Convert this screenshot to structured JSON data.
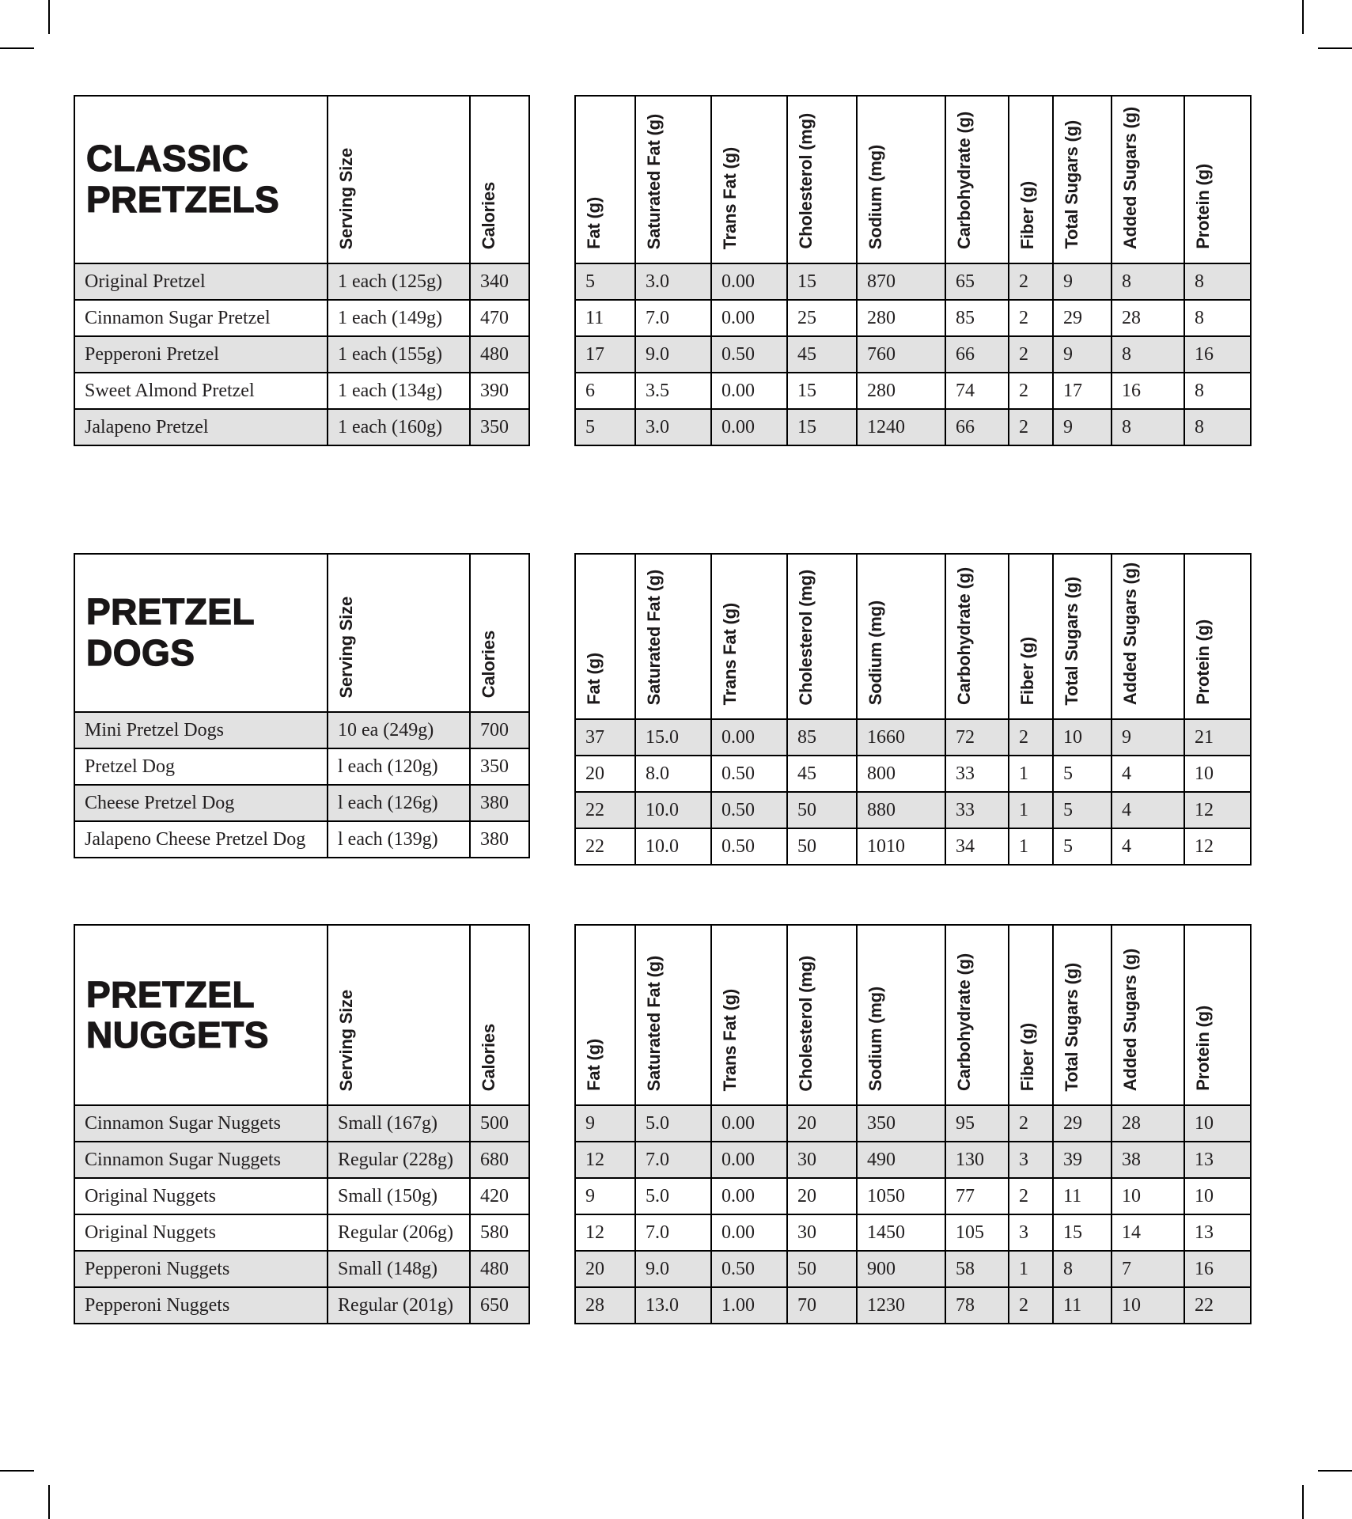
{
  "labels": {
    "serving": "Serving Size",
    "calories": "Calories",
    "nutrition": [
      "Fat (g)",
      "Saturated Fat (g)",
      "Trans Fat (g)",
      "Cholesterol (mg)",
      "Sodium (mg)",
      "Carbohydrate (g)",
      "Fiber (g)",
      "Total Sugars (g)",
      "Added Sugars (g)",
      "Protein (g)"
    ]
  },
  "colors": {
    "row_shade": "#e2e2e2",
    "border": "#000000",
    "text": "#232021"
  },
  "sections": [
    {
      "title": "CLASSIC PRETZELS",
      "title_lines": [
        "CLASSIC",
        "PRETZELS"
      ],
      "rows": [
        {
          "name": "Original Pretzel",
          "serving": "1 each (125g)",
          "calories": "340",
          "shaded": true,
          "nutrition": [
            "5",
            "3.0",
            "0.00",
            "15",
            "870",
            "65",
            "2",
            "9",
            "8",
            "8"
          ]
        },
        {
          "name": "Cinnamon Sugar Pretzel",
          "serving": "1 each (149g)",
          "calories": "470",
          "shaded": false,
          "nutrition": [
            "11",
            "7.0",
            "0.00",
            "25",
            "280",
            "85",
            "2",
            "29",
            "28",
            "8"
          ]
        },
        {
          "name": "Pepperoni Pretzel",
          "serving": "1 each (155g)",
          "calories": "480",
          "shaded": true,
          "nutrition": [
            "17",
            "9.0",
            "0.50",
            "45",
            "760",
            "66",
            "2",
            "9",
            "8",
            "16"
          ]
        },
        {
          "name": "Sweet Almond Pretzel",
          "serving": "1 each (134g)",
          "calories": "390",
          "shaded": false,
          "nutrition": [
            "6",
            "3.5",
            "0.00",
            "15",
            "280",
            "74",
            "2",
            "17",
            "16",
            "8"
          ]
        },
        {
          "name": "Jalapeno Pretzel",
          "serving": "1 each (160g)",
          "calories": "350",
          "shaded": true,
          "nutrition": [
            "5",
            "3.0",
            "0.00",
            "15",
            "1240",
            "66",
            "2",
            "9",
            "8",
            "8"
          ]
        }
      ]
    },
    {
      "title": "PRETZEL DOGS",
      "title_lines": [
        "PRETZEL",
        "DOGS"
      ],
      "rows": [
        {
          "name": "Mini Pretzel Dogs",
          "serving": "10 ea (249g)",
          "calories": "700",
          "shaded": true,
          "nutrition": [
            "37",
            "15.0",
            "0.00",
            "85",
            "1660",
            "72",
            "2",
            "10",
            "9",
            "21"
          ]
        },
        {
          "name": "Pretzel Dog",
          "serving": "l each (120g)",
          "calories": "350",
          "shaded": false,
          "nutrition": [
            "20",
            "8.0",
            "0.50",
            "45",
            "800",
            "33",
            "1",
            "5",
            "4",
            "10"
          ]
        },
        {
          "name": "Cheese Pretzel Dog",
          "serving": "l each (126g)",
          "calories": "380",
          "shaded": true,
          "nutrition": [
            "22",
            "10.0",
            "0.50",
            "50",
            "880",
            "33",
            "1",
            "5",
            "4",
            "12"
          ]
        },
        {
          "name": "Jalapeno Cheese Pretzel Dog",
          "serving": "l each (139g)",
          "calories": "380",
          "shaded": false,
          "nutrition": [
            "22",
            "10.0",
            "0.50",
            "50",
            "1010",
            "34",
            "1",
            "5",
            "4",
            "12"
          ]
        }
      ]
    },
    {
      "title": "PRETZEL NUGGETS",
      "title_lines": [
        "PRETZEL",
        "NUGGETS"
      ],
      "rows": [
        {
          "name": "Cinnamon Sugar Nuggets",
          "serving": "Small (167g)",
          "calories": "500",
          "shaded": true,
          "nutrition": [
            "9",
            "5.0",
            "0.00",
            "20",
            "350",
            "95",
            "2",
            "29",
            "28",
            "10"
          ]
        },
        {
          "name": "Cinnamon Sugar Nuggets",
          "serving": "Regular (228g)",
          "calories": "680",
          "shaded": true,
          "nutrition": [
            "12",
            "7.0",
            "0.00",
            "30",
            "490",
            "130",
            "3",
            "39",
            "38",
            "13"
          ]
        },
        {
          "name": "Original Nuggets",
          "serving": "Small (150g)",
          "calories": "420",
          "shaded": false,
          "nutrition": [
            "9",
            "5.0",
            "0.00",
            "20",
            "1050",
            "77",
            "2",
            "11",
            "10",
            "10"
          ]
        },
        {
          "name": "Original Nuggets",
          "serving": "Regular (206g)",
          "calories": "580",
          "shaded": false,
          "nutrition": [
            "12",
            "7.0",
            "0.00",
            "30",
            "1450",
            "105",
            "3",
            "15",
            "14",
            "13"
          ]
        },
        {
          "name": "Pepperoni Nuggets",
          "serving": "Small (148g)",
          "calories": "480",
          "shaded": true,
          "nutrition": [
            "20",
            "9.0",
            "0.50",
            "50",
            "900",
            "58",
            "1",
            "8",
            "7",
            "16"
          ]
        },
        {
          "name": "Pepperoni Nuggets",
          "serving": "Regular (201g)",
          "calories": "650",
          "shaded": true,
          "nutrition": [
            "28",
            "13.0",
            "1.00",
            "70",
            "1230",
            "78",
            "2",
            "11",
            "10",
            "22"
          ]
        }
      ]
    }
  ]
}
